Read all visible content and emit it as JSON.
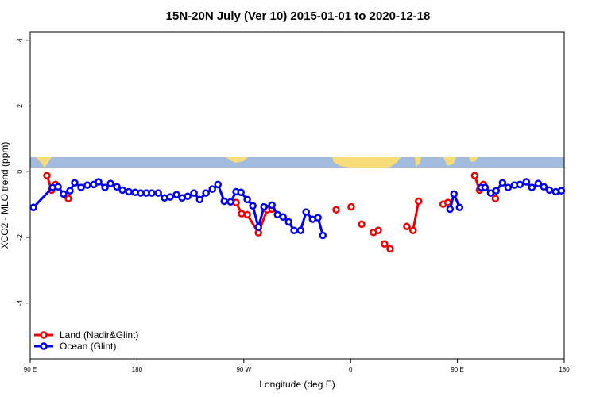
{
  "chart_data": {
    "type": "line",
    "title": "15N-20N July (Ver 10)   2015-01-01 to 2020-12-18",
    "x_label": "Longitude (deg E)",
    "y_label": "XCO2 - MLO trend (ppm)",
    "xlim": [
      90,
      540
    ],
    "ylim": [
      -5.7,
      4.26
    ],
    "xticks": [
      {
        "value": 90,
        "label": "90 E"
      },
      {
        "value": 180,
        "label": "180"
      },
      {
        "value": 270,
        "label": "90 W"
      },
      {
        "value": 360,
        "label": "0"
      },
      {
        "value": 450,
        "label": "90 E"
      },
      {
        "value": 540,
        "label": "180"
      }
    ],
    "yticks": [
      -4,
      -2,
      0,
      2,
      4
    ],
    "legend": "bottom-left",
    "series": [
      {
        "name": "Land (Nadir&Glint)",
        "color": "#ee0000",
        "x": [
          104.1,
          108.1,
          111.4,
          122.2,
          null,
          263.5,
          268.2,
          272.9,
          282.3,
          289.7,
          293.7,
          null,
          347.8,
          null,
          360.5,
          null,
          369.3,
          null,
          379.3,
          383.3,
          null,
          388.6,
          393.3,
          null,
          407.4,
          412.6,
          417.3,
          null,
          438,
          442,
          null,
          464.6,
          468.6,
          471.9,
          482
        ],
        "values": [
          -0.12,
          -0.56,
          -0.39,
          -0.82,
          null,
          -0.94,
          -1.28,
          -1.31,
          -1.86,
          -1.16,
          -1.14,
          null,
          -1.16,
          null,
          -1.07,
          null,
          -1.6,
          null,
          -1.85,
          -1.79,
          null,
          -2.2,
          -2.35,
          null,
          -1.67,
          -1.79,
          -0.9,
          null,
          -0.99,
          -0.94,
          null,
          -0.12,
          -0.56,
          -0.39,
          -0.82
        ]
      },
      {
        "name": "Ocean (Glint)",
        "color": "#0000ee",
        "x": [
          92.7,
          108.8,
          113.5,
          118.1,
          123.5,
          127.5,
          132.9,
          138.2,
          143.6,
          147.6,
          153,
          157.7,
          163,
          167.7,
          173.1,
          178.4,
          183.1,
          187.8,
          192.5,
          197.9,
          203.2,
          207.9,
          213.3,
          218,
          222.7,
          228,
          232.8,
          238.1,
          243.5,
          248.2,
          253.5,
          258.9,
          263.5,
          267.6,
          272.9,
          277.6,
          282.3,
          287,
          293.7,
          298.4,
          303.1,
          307.8,
          312.4,
          317.8,
          322.5,
          327.9,
          332.5,
          336.6,
          null,
          443.8,
          447.1,
          451.8,
          null,
          470,
          473.3,
          478,
          482.6,
          488,
          492.7,
          498,
          502.7,
          508.1,
          512.8,
          518.1,
          522.8,
          527.5,
          532.9,
          537.6
        ],
        "values": [
          -1.09,
          -0.48,
          -0.46,
          -0.68,
          -0.58,
          -0.34,
          -0.48,
          -0.41,
          -0.39,
          -0.31,
          -0.48,
          -0.36,
          -0.46,
          -0.56,
          -0.61,
          -0.63,
          -0.65,
          -0.65,
          -0.65,
          -0.65,
          -0.8,
          -0.77,
          -0.7,
          -0.8,
          -0.75,
          -0.65,
          -0.85,
          -0.65,
          -0.53,
          -0.39,
          -0.9,
          -0.92,
          -0.61,
          -0.63,
          -0.85,
          -1.04,
          -1.69,
          -1.07,
          -1.02,
          -1.31,
          -1.38,
          -1.53,
          -1.79,
          -1.79,
          -1.23,
          -1.45,
          -1.4,
          -1.94,
          null,
          -1.14,
          -0.68,
          -1.09,
          null,
          -0.48,
          -0.48,
          -0.65,
          -0.58,
          -0.34,
          -0.48,
          -0.41,
          -0.39,
          -0.31,
          -0.48,
          -0.36,
          -0.46,
          -0.56,
          -0.61,
          -0.58
        ]
      }
    ]
  }
}
